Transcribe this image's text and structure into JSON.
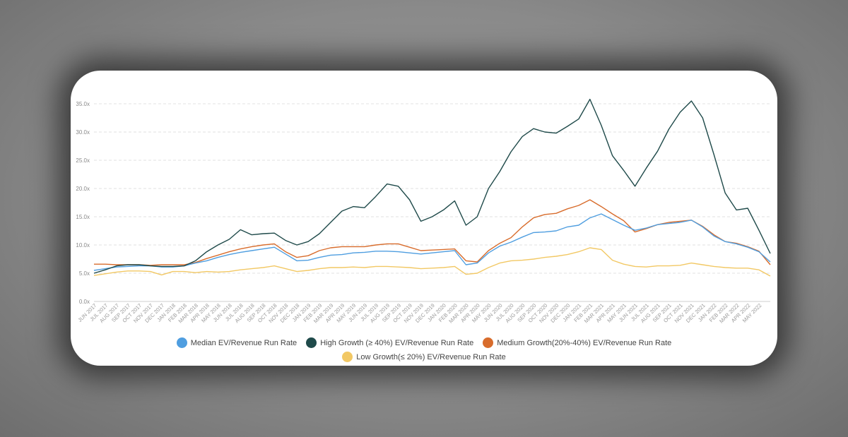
{
  "chart_data": {
    "type": "line",
    "title": "",
    "xlabel": "",
    "ylabel": "",
    "ylim": [
      0,
      35
    ],
    "y_ticks": [
      "0.0x",
      "5.0x",
      "10.0x",
      "15.0x",
      "20.0x",
      "25.0x",
      "30.0x",
      "35.0x"
    ],
    "grid": "horizontal dashed",
    "legend_position": "bottom",
    "x_ticks": [
      "JUN 2017",
      "JUL 2017",
      "AUG 2017",
      "SEP 2017",
      "OCT 2017",
      "NOV 2017",
      "DEC 2017",
      "JAN 2018",
      "FEB 2018",
      "MAR 2018",
      "APR 2018",
      "MAY 2018",
      "JUN 2018",
      "JUL 2018",
      "AUG 2018",
      "SEP 2018",
      "OCT 2018",
      "NOV 2018",
      "DEC 2018",
      "JAN 2019",
      "FEB 2019",
      "MAR 2019",
      "APR 2019",
      "MAY 2019",
      "JUN 2019",
      "JUL 2019",
      "AUG 2019",
      "SEP 2019",
      "OCT 2019",
      "NOV 2019",
      "DEC 2019",
      "JAN 2020",
      "FEB 2020",
      "MAR 2020",
      "APR 2020",
      "MAY 2020",
      "JUN 2020",
      "JUL 2020",
      "AUG 2020",
      "SEP 2020",
      "OCT 2020",
      "NOV 2020",
      "DEC 2020",
      "JAN 2021",
      "FEB 2021",
      "MAR 2021",
      "APR 2021",
      "MAY 2021",
      "JUN 2021",
      "JUL 2021",
      "AUG 2021",
      "SEP 2021",
      "OCT 2021",
      "NOV 2021",
      "DEC 2021",
      "JAN 2022",
      "FEB 2022",
      "MAR 2022",
      "APR 2022",
      "MAY 2022"
    ],
    "x": [
      "Jun 2017",
      "Jul 2017",
      "Aug 2017",
      "Sep 2017",
      "Oct 2017",
      "Nov 2017",
      "Dec 2017",
      "Jan 2018",
      "Feb 2018",
      "Mar 2018",
      "Apr 2018",
      "May 2018",
      "Jun 2018",
      "Jul 2018",
      "Aug 2018",
      "Sep 2018",
      "Oct 2018",
      "Nov 2018",
      "Dec 2018",
      "Jan 2019",
      "Feb 2019",
      "Mar 2019",
      "Apr 2019",
      "May 2019",
      "Jun 2019",
      "Jul 2019",
      "Aug 2019",
      "Sep 2019",
      "Oct 2019",
      "Nov 2019",
      "Dec 2019",
      "Jan 2020",
      "Feb 2020",
      "Mar 2020",
      "Apr 2020",
      "May 2020",
      "Jun 2020",
      "Jul 2020",
      "Aug 2020",
      "Sep 2020",
      "Oct 2020",
      "Nov 2020",
      "Dec 2020",
      "Jan 2021",
      "Feb 2021",
      "Mar 2021",
      "Apr 2021",
      "May 2021",
      "Jun 2021",
      "Jul 2021",
      "Aug 2021",
      "Sep 2021",
      "Oct 2021",
      "Nov 2021",
      "Dec 2021",
      "Jan 2022",
      "Feb 2022",
      "Mar 2022",
      "Apr 2022",
      "May 2022",
      "Jun 2022"
    ],
    "series": [
      {
        "name": "Median EV/Revenue Run Rate",
        "color": "#4f9ee0",
        "values": [
          5.5,
          5.8,
          6.1,
          6.2,
          6.3,
          6.3,
          6.1,
          6.1,
          6.3,
          6.8,
          7.2,
          7.8,
          8.3,
          8.7,
          9.0,
          9.3,
          9.6,
          8.4,
          7.2,
          7.3,
          7.8,
          8.2,
          8.3,
          8.6,
          8.7,
          8.9,
          8.9,
          8.8,
          8.6,
          8.4,
          8.6,
          8.8,
          9.0,
          6.5,
          6.8,
          8.6,
          9.8,
          10.5,
          11.4,
          12.2,
          12.3,
          12.5,
          13.2,
          13.5,
          14.8,
          15.5,
          14.5,
          13.5,
          12.6,
          13.0,
          13.6,
          13.8,
          14.0,
          14.4,
          13.2,
          11.6,
          10.6,
          10.2,
          9.6,
          8.8,
          7.0
        ]
      },
      {
        "name": "High Growth (≥ 40%) EV/Revenue Run Rate",
        "color": "#1f4a4a",
        "values": [
          5.0,
          5.6,
          6.3,
          6.5,
          6.5,
          6.3,
          6.2,
          6.2,
          6.3,
          7.2,
          8.8,
          10.0,
          11.0,
          12.7,
          11.8,
          12.0,
          12.1,
          10.8,
          10.0,
          10.6,
          12.0,
          14.0,
          16.0,
          16.8,
          16.6,
          18.6,
          20.8,
          20.4,
          18.0,
          14.2,
          15.0,
          16.2,
          17.8,
          13.5,
          15.0,
          20.0,
          23.0,
          26.5,
          29.2,
          30.6,
          30.0,
          29.8,
          31.0,
          32.3,
          35.8,
          31.2,
          25.8,
          23.2,
          20.4,
          23.6,
          26.6,
          30.5,
          33.5,
          35.5,
          32.5,
          26.0,
          19.2,
          16.2,
          16.5,
          12.6,
          8.5
        ]
      },
      {
        "name": "Medium Growth(20%-40%) EV/Revenue Run Rate",
        "color": "#d86c2c",
        "values": [
          6.6,
          6.6,
          6.5,
          6.5,
          6.5,
          6.4,
          6.5,
          6.5,
          6.5,
          6.9,
          7.6,
          8.2,
          8.8,
          9.3,
          9.7,
          10.0,
          10.2,
          8.8,
          7.8,
          8.1,
          9.0,
          9.5,
          9.7,
          9.7,
          9.7,
          10.0,
          10.2,
          10.2,
          9.6,
          9.0,
          9.1,
          9.2,
          9.3,
          7.2,
          7.0,
          9.0,
          10.3,
          11.3,
          13.2,
          14.8,
          15.4,
          15.6,
          16.4,
          17.0,
          18.0,
          16.8,
          15.5,
          14.3,
          12.3,
          12.9,
          13.6,
          14.0,
          14.2,
          14.4,
          13.3,
          11.8,
          10.6,
          10.3,
          9.7,
          8.9,
          6.5
        ]
      },
      {
        "name": "Low Growth(≤ 20%) EV/Revenue Run Rate",
        "color": "#f2c864",
        "values": [
          4.6,
          4.9,
          5.2,
          5.4,
          5.4,
          5.3,
          4.7,
          5.3,
          5.3,
          5.1,
          5.3,
          5.2,
          5.3,
          5.6,
          5.8,
          6.0,
          6.3,
          5.8,
          5.3,
          5.5,
          5.8,
          6.0,
          6.0,
          6.1,
          6.0,
          6.2,
          6.2,
          6.1,
          6.0,
          5.8,
          5.9,
          6.0,
          6.2,
          4.8,
          5.0,
          6.0,
          6.8,
          7.2,
          7.3,
          7.5,
          7.8,
          8.0,
          8.3,
          8.8,
          9.5,
          9.2,
          7.3,
          6.6,
          6.2,
          6.1,
          6.3,
          6.3,
          6.4,
          6.8,
          6.5,
          6.2,
          6.0,
          5.9,
          5.9,
          5.6,
          4.5
        ]
      }
    ]
  }
}
